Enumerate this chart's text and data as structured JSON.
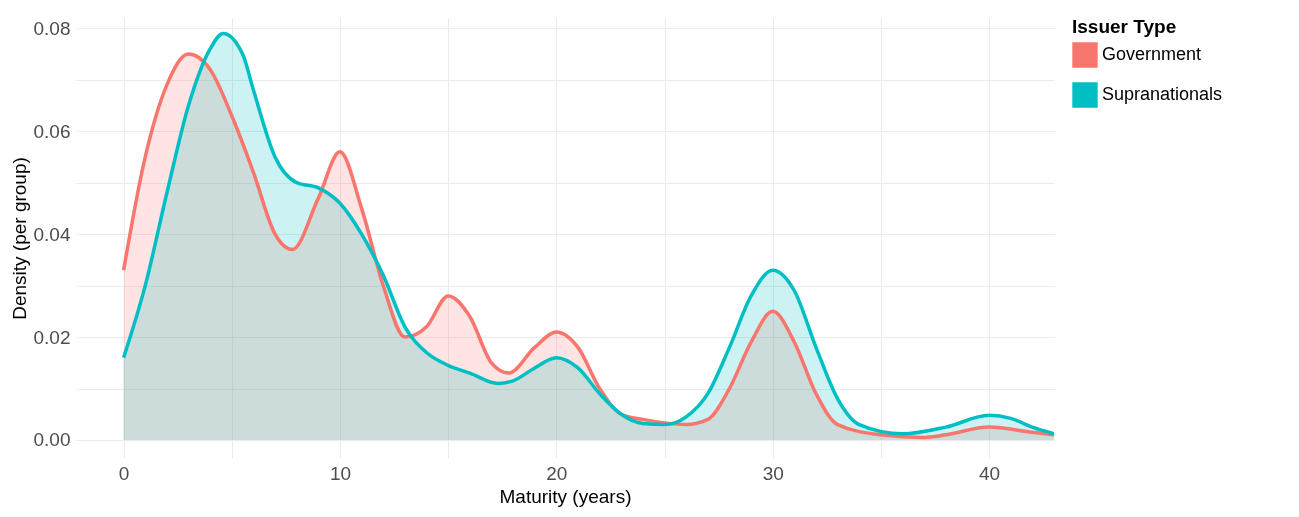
{
  "chart_data": {
    "type": "area",
    "xlabel": "Maturity (years)",
    "ylabel": "Density (per group)",
    "legend_title": "Issuer Type",
    "xlim": [
      -2.2,
      43
    ],
    "ylim": [
      -0.0035,
      0.082
    ],
    "xticks": [
      0,
      {
        "value": 5,
        "label": null
      },
      10,
      {
        "value": 15,
        "label": null
      },
      20,
      {
        "value": 25,
        "label": null
      },
      30,
      {
        "value": 35,
        "label": null
      },
      40
    ],
    "yticks": [
      "0.00",
      {
        "value": 0.01,
        "label": null
      },
      {
        "value": 0.02,
        "label": "0.02"
      },
      {
        "value": 0.03,
        "label": null
      },
      {
        "value": 0.04,
        "label": "0.04"
      },
      {
        "value": 0.05,
        "label": null
      },
      {
        "value": 0.06,
        "label": "0.06"
      },
      {
        "value": 0.07,
        "label": null
      },
      {
        "value": 0.08,
        "label": "0.08"
      }
    ],
    "grid": true,
    "legend": "right",
    "series": [
      {
        "name": "Government",
        "color": "#f8766d",
        "x": [
          0,
          1,
          1.5,
          2,
          3,
          4,
          5,
          6,
          7,
          7.8,
          9,
          10,
          11,
          12,
          13,
          14,
          15,
          16,
          17,
          17.8,
          19,
          20,
          21,
          22,
          23,
          24,
          26,
          27,
          28,
          29,
          30,
          31,
          32,
          33,
          35,
          37,
          38,
          40,
          42,
          43
        ],
        "values": [
          0.033,
          0.055,
          0.063,
          0.069,
          0.075,
          0.072,
          0.063,
          0.052,
          0.04,
          0.037,
          0.047,
          0.056,
          0.045,
          0.03,
          0.02,
          0.022,
          0.028,
          0.024,
          0.015,
          0.013,
          0.018,
          0.021,
          0.018,
          0.01,
          0.005,
          0.004,
          0.003,
          0.004,
          0.01,
          0.019,
          0.025,
          0.019,
          0.009,
          0.003,
          0.001,
          0.0005,
          0.001,
          0.0025,
          0.0015,
          0.001
        ]
      },
      {
        "name": "Supranationals",
        "color": "#00bfc4",
        "x": [
          0,
          1,
          2,
          3,
          4,
          4.6,
          5.5,
          6,
          7,
          8,
          9,
          10,
          11,
          12,
          13,
          14,
          15,
          16,
          17.3,
          18,
          19,
          20,
          21,
          22,
          23,
          24,
          25,
          26,
          27,
          28,
          29,
          30,
          31,
          32,
          33,
          34,
          36,
          38,
          40,
          41,
          42,
          43
        ],
        "values": [
          0.016,
          0.03,
          0.048,
          0.065,
          0.076,
          0.079,
          0.075,
          0.068,
          0.055,
          0.05,
          0.049,
          0.046,
          0.04,
          0.032,
          0.022,
          0.017,
          0.0145,
          0.013,
          0.011,
          0.0115,
          0.014,
          0.016,
          0.014,
          0.009,
          0.005,
          0.0032,
          0.003,
          0.0045,
          0.009,
          0.018,
          0.028,
          0.033,
          0.029,
          0.018,
          0.008,
          0.003,
          0.0012,
          0.0025,
          0.0048,
          0.0042,
          0.0025,
          0.0012
        ]
      }
    ]
  }
}
